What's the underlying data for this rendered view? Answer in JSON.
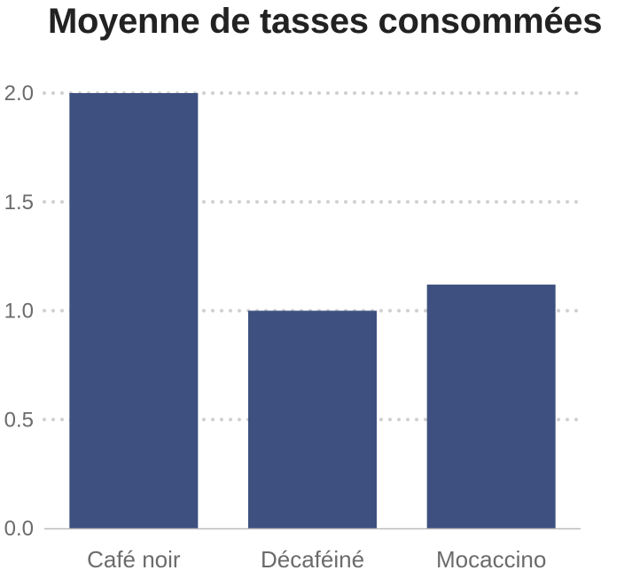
{
  "chart_data": {
    "type": "bar",
    "title": "Moyenne de tasses consommées",
    "categories": [
      "Café noir",
      "Décaféiné",
      "Mocaccino"
    ],
    "values": [
      2.0,
      1.0,
      1.12
    ],
    "ylim": [
      0,
      2.0
    ],
    "yticks": [
      "0.0",
      "0.5",
      "1.0",
      "1.5",
      "2.0"
    ],
    "ytick_values": [
      0,
      0.5,
      1.0,
      1.5,
      2.0
    ],
    "xlabel": "",
    "ylabel": "",
    "grid": true,
    "bar_color": "#3d5080",
    "grid_color": "#d0d0d0",
    "axis_color": "#bbbbbb"
  }
}
